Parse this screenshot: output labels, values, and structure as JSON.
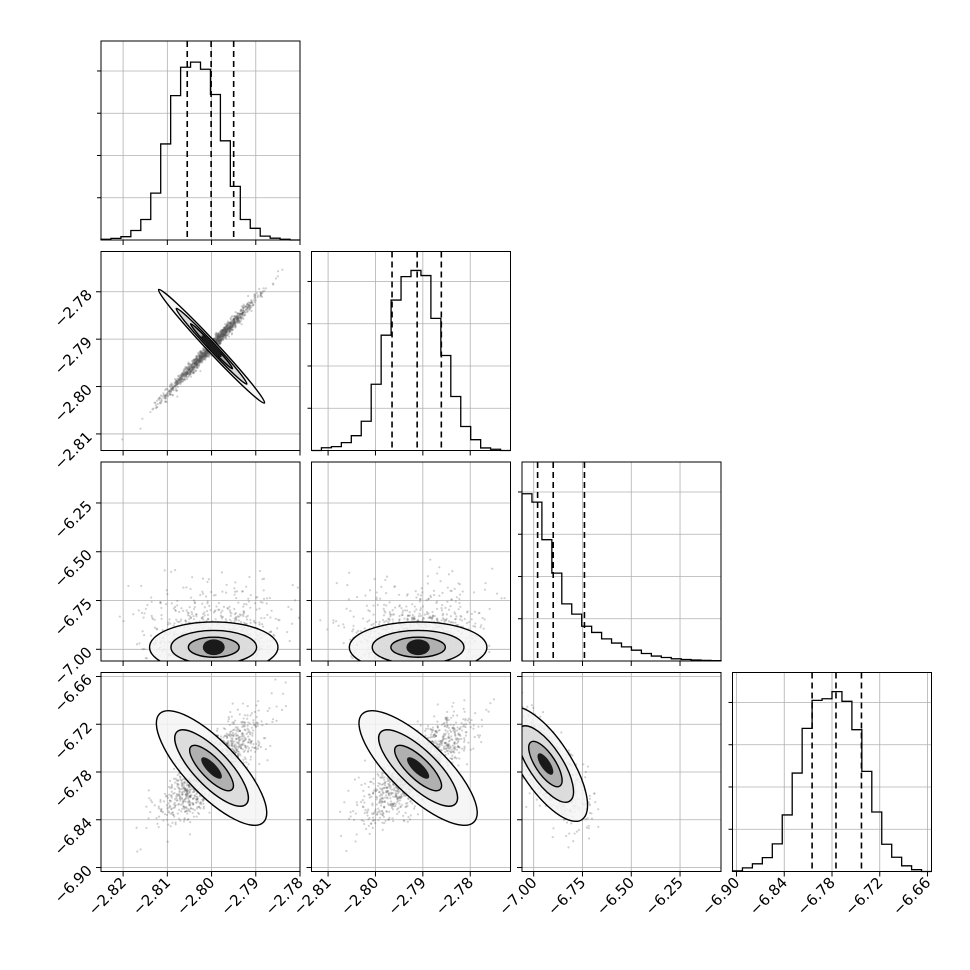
{
  "chart_data": {
    "type": "corner",
    "title": "",
    "parameters": [
      {
        "name": "",
        "range": [
          -2.825,
          -2.78
        ],
        "ticks": [
          "−2.82",
          "−2.81",
          "−2.80",
          "−2.79",
          "−2.78"
        ],
        "tick_values": [
          -2.82,
          -2.81,
          -2.8,
          -2.79,
          -2.78
        ],
        "quantiles": [
          -2.8055,
          -2.8001,
          -2.795
        ]
      },
      {
        "name": "",
        "range": [
          -2.8135,
          -2.7715
        ],
        "ticks": [
          "−2.81",
          "−2.80",
          "−2.79",
          "−2.78"
        ],
        "tick_values": [
          -2.81,
          -2.8,
          -2.79,
          -2.78
        ],
        "quantiles": [
          -2.7965,
          -2.7912,
          -2.7861
        ]
      },
      {
        "name": "",
        "range": [
          -7.06,
          -6.04
        ],
        "ticks": [
          "−7.00",
          "−6.75",
          "−6.50",
          "−6.25"
        ],
        "tick_values": [
          -7.0,
          -6.75,
          -6.5,
          -6.25
        ],
        "quantiles": [
          -6.98,
          -6.9,
          -6.74
        ]
      },
      {
        "name": "",
        "range": [
          -6.905,
          -6.655
        ],
        "ticks": [
          "−6.90",
          "−6.84",
          "−6.78",
          "−6.72",
          "−6.66"
        ],
        "tick_values": [
          -6.9,
          -6.84,
          -6.78,
          -6.72,
          -6.66
        ],
        "quantiles": [
          -6.805,
          -6.775,
          -6.743
        ]
      }
    ],
    "histograms": [
      [
        0.004,
        0.009,
        0.018,
        0.052,
        0.112,
        0.256,
        0.525,
        0.789,
        0.944,
        0.972,
        0.933,
        0.795,
        0.542,
        0.293,
        0.112,
        0.064,
        0.021,
        0.01,
        0.004,
        0.0
      ],
      [
        0.0,
        0.015,
        0.021,
        0.043,
        0.081,
        0.16,
        0.362,
        0.63,
        0.822,
        0.95,
        0.984,
        0.956,
        0.722,
        0.519,
        0.295,
        0.131,
        0.059,
        0.014,
        0.007,
        0.0
      ],
      [
        0.914,
        0.868,
        0.663,
        0.48,
        0.312,
        0.256,
        0.19,
        0.156,
        0.121,
        0.098,
        0.077,
        0.059,
        0.041,
        0.027,
        0.019,
        0.012,
        0.008,
        0.005,
        0.003,
        0.002
      ],
      [
        0.003,
        0.02,
        0.042,
        0.076,
        0.151,
        0.309,
        0.538,
        0.782,
        0.935,
        0.944,
        0.983,
        0.93,
        0.775,
        0.547,
        0.325,
        0.149,
        0.078,
        0.031,
        0.01,
        0.0
      ]
    ],
    "panels": [
      {
        "i": 1,
        "j": 0,
        "mean": [
          -2.8,
          -2.7915
        ],
        "sd": [
          0.005,
          0.005
        ],
        "corr": 0.99,
        "skew_y": 0
      },
      {
        "i": 2,
        "j": 0,
        "mean": [
          -2.7995,
          -6.94
        ],
        "sd": [
          0.0055,
          0.09
        ],
        "corr": 0.0,
        "skew_y": 1
      },
      {
        "i": 2,
        "j": 1,
        "mean": [
          -2.791,
          -6.94
        ],
        "sd": [
          0.0055,
          0.09
        ],
        "corr": 0.0,
        "skew_y": 1
      },
      {
        "i": 3,
        "j": 0,
        "mean": [
          -2.8,
          -6.775
        ],
        "sd": [
          0.0052,
          0.03
        ],
        "corr": 0.78,
        "skew_y": 0
      },
      {
        "i": 3,
        "j": 1,
        "mean": [
          -2.791,
          -6.775
        ],
        "sd": [
          0.0052,
          0.03
        ],
        "corr": 0.78,
        "skew_y": 0
      },
      {
        "i": 3,
        "j": 2,
        "mean": [
          -6.94,
          -6.77
        ],
        "sd": [
          0.09,
          0.03
        ],
        "corr": -0.72,
        "skew_y": 0
      }
    ],
    "grid": true,
    "legend": "none"
  }
}
